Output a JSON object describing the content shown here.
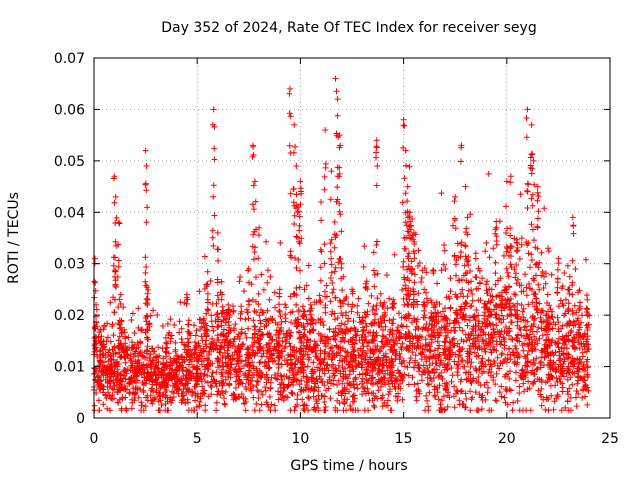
{
  "chart_data": {
    "type": "scatter",
    "title": "Day 352 of 2024, Rate Of TEC Index for receiver seyg",
    "xlabel": "GPS time / hours",
    "ylabel": "ROTI / TECUs",
    "xlim": [
      0,
      25
    ],
    "ylim": [
      0,
      0.07
    ],
    "xticks": [
      0,
      5,
      10,
      15,
      20,
      25
    ],
    "yticks": [
      0,
      0.01,
      0.02,
      0.03,
      0.04,
      0.05,
      0.06,
      0.07
    ],
    "xtick_labels": [
      "0",
      "5",
      "10",
      "15",
      "20",
      "25"
    ],
    "ytick_labels": [
      "0",
      "0.01",
      "0.02",
      "0.03",
      "0.04",
      "0.05",
      "0.06",
      "0.07"
    ],
    "grid": true,
    "marker": "plus",
    "color": "#ff0000",
    "x_data_range": [
      0,
      24
    ],
    "series": [
      {
        "x": [
          0.05,
          0.1,
          0.3,
          0.5,
          0.8,
          1.0,
          1.05,
          1.2,
          1.3,
          1.5,
          2.0,
          2.5,
          2.55,
          2.6,
          3.0,
          3.5,
          4.0,
          4.5,
          4.6,
          5.0,
          5.5,
          5.8,
          6.0,
          6.2,
          6.5,
          7.0,
          7.5,
          7.7,
          7.8,
          8.0,
          8.5,
          9.0,
          9.5,
          9.7,
          9.8,
          9.9,
          10.0,
          10.2,
          10.5,
          11.0,
          11.2,
          11.5,
          11.7,
          11.8,
          11.9,
          12.0,
          12.5,
          13.0,
          13.5,
          13.7,
          14.0,
          14.5,
          15.0,
          15.1,
          15.2,
          15.3,
          15.5,
          16.0,
          16.5,
          17.0,
          17.5,
          17.8,
          18.0,
          18.1,
          18.5,
          19.0,
          19.5,
          20.0,
          20.2,
          20.5,
          21.0,
          21.2,
          21.3,
          21.5,
          22.0,
          22.5,
          23.0,
          23.2,
          23.5,
          23.9
        ],
        "y": [
          0.031,
          0.022,
          0.015,
          0.018,
          0.012,
          0.047,
          0.043,
          0.038,
          0.024,
          0.014,
          0.011,
          0.052,
          0.049,
          0.023,
          0.012,
          0.01,
          0.011,
          0.024,
          0.019,
          0.01,
          0.026,
          0.06,
          0.036,
          0.024,
          0.022,
          0.014,
          0.029,
          0.053,
          0.046,
          0.037,
          0.023,
          0.025,
          0.064,
          0.057,
          0.049,
          0.041,
          0.046,
          0.025,
          0.022,
          0.042,
          0.056,
          0.048,
          0.066,
          0.062,
          0.055,
          0.03,
          0.025,
          0.019,
          0.021,
          0.054,
          0.022,
          0.023,
          0.058,
          0.052,
          0.045,
          0.04,
          0.036,
          0.025,
          0.022,
          0.014,
          0.043,
          0.053,
          0.045,
          0.039,
          0.031,
          0.026,
          0.037,
          0.046,
          0.047,
          0.034,
          0.06,
          0.057,
          0.05,
          0.045,
          0.033,
          0.031,
          0.025,
          0.039,
          0.021,
          0.023
        ]
      }
    ]
  }
}
